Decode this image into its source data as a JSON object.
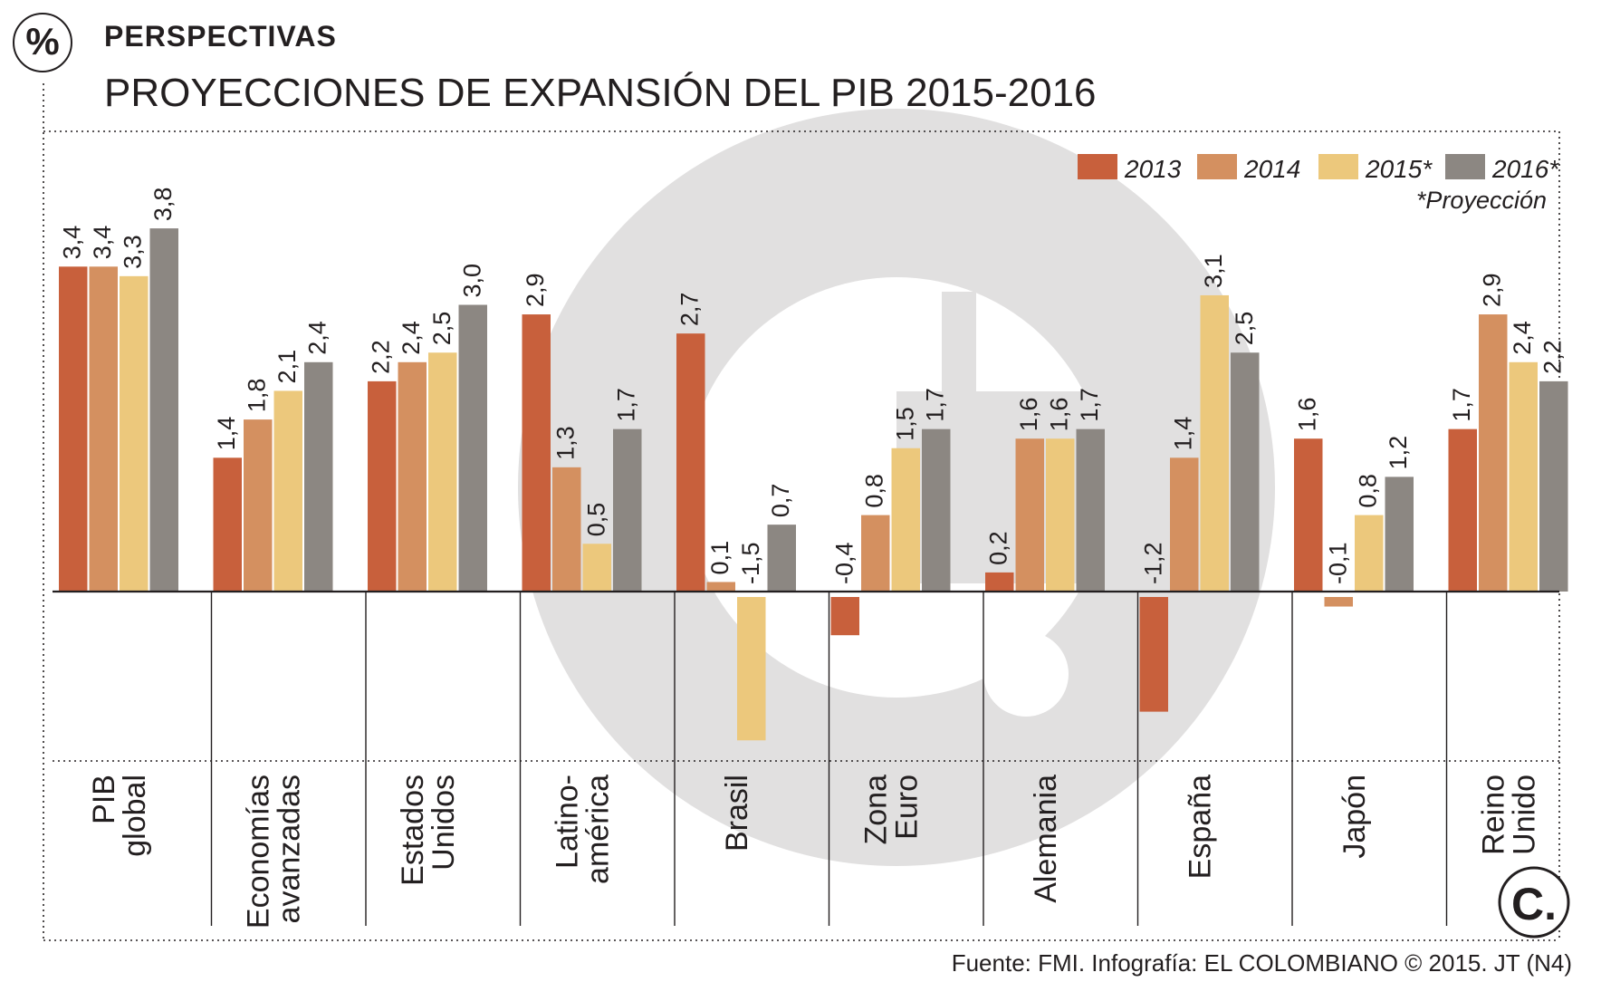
{
  "header": {
    "icon_name": "percent-icon",
    "icon_text": "%",
    "section_label": "PERSPECTIVAS"
  },
  "colors": {
    "s2013": "#c8603c",
    "s2014": "#d49060",
    "s2015": "#ecc87c",
    "s2016": "#8c8782",
    "text": "#231f20",
    "watermark": "#e1e0e0"
  },
  "footer": {
    "source": "Fuente: FMI. Infografía: EL COLOMBIANO © 2015. JT (N4)",
    "logo_text": "C."
  },
  "chart_data": {
    "type": "bar",
    "title": "PROYECCIONES DE EXPANSIÓN DEL PIB 2015-2016",
    "xlabel": "",
    "ylabel": "",
    "ylim": [
      -1.6,
      4.0
    ],
    "grid": false,
    "legend_position": "top-right",
    "legend_note": "*Proyección",
    "categories": [
      [
        "PIB",
        "global"
      ],
      [
        "Economías",
        "avanzadas"
      ],
      [
        "Estados",
        "Unidos"
      ],
      [
        "Latino-",
        "américa"
      ],
      [
        "Brasil"
      ],
      [
        "Zona",
        "Euro"
      ],
      [
        "Alemania"
      ],
      [
        "España"
      ],
      [
        "Japón"
      ],
      [
        "Reino",
        "Unido"
      ]
    ],
    "series": [
      {
        "name": "2013",
        "color_key": "s2013",
        "values": [
          3.4,
          1.4,
          2.2,
          2.9,
          2.7,
          -0.4,
          0.2,
          -1.2,
          1.6,
          1.7
        ],
        "labels": [
          "3,4",
          "1,4",
          "2,2",
          "2,9",
          "2,7",
          "-0,4",
          "0,2",
          "-1,2",
          "1,6",
          "1,7"
        ]
      },
      {
        "name": "2014",
        "color_key": "s2014",
        "values": [
          3.4,
          1.8,
          2.4,
          1.3,
          0.1,
          0.8,
          1.6,
          1.4,
          -0.1,
          2.9
        ],
        "labels": [
          "3,4",
          "1,8",
          "2,4",
          "1,3",
          "0,1",
          "0,8",
          "1,6",
          "1,4",
          "-0,1",
          "2,9"
        ]
      },
      {
        "name": "2015*",
        "color_key": "s2015",
        "values": [
          3.3,
          2.1,
          2.5,
          0.5,
          -1.5,
          1.5,
          1.6,
          3.1,
          0.8,
          2.4
        ],
        "labels": [
          "3,3",
          "2,1",
          "2,5",
          "0,5",
          "-1,5",
          "1,5",
          "1,6",
          "3,1",
          "0,8",
          "2,4"
        ]
      },
      {
        "name": "2016*",
        "color_key": "s2016",
        "values": [
          3.8,
          2.4,
          3.0,
          1.7,
          0.7,
          1.7,
          1.7,
          2.5,
          1.2,
          2.2
        ],
        "labels": [
          "3,8",
          "2,4",
          "3,0",
          "1,7",
          "0,7",
          "1,7",
          "1,7",
          "2,5",
          "1,2",
          "2,2"
        ]
      }
    ]
  }
}
